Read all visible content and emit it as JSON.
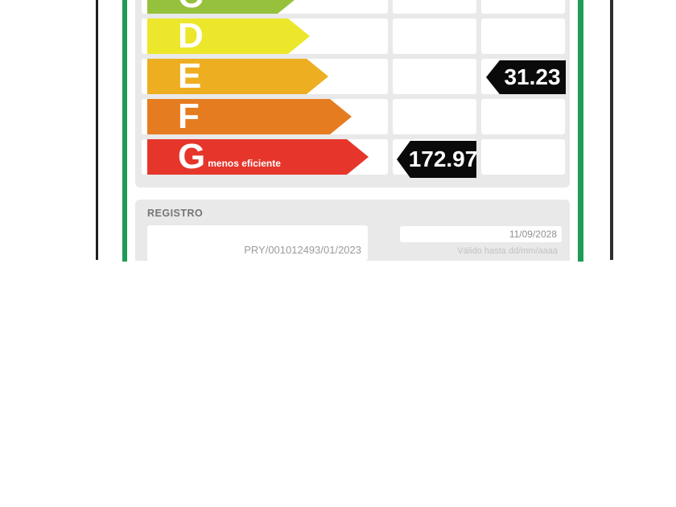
{
  "label": {
    "kind": "energy-efficiency-scale",
    "bands": [
      {
        "letter": "C",
        "color": "#96c13d"
      },
      {
        "letter": "D",
        "color": "#ece72a"
      },
      {
        "letter": "E",
        "color": "#eeae21"
      },
      {
        "letter": "F",
        "color": "#e67c20"
      },
      {
        "letter": "G",
        "color": "#e6362b",
        "suffix": "menos eficiente"
      }
    ],
    "indicators": [
      {
        "value": "31.23",
        "row": "E"
      },
      {
        "value": "172.97",
        "row": "G"
      }
    ],
    "border_color": "#1e9b55",
    "panel_color": "#e9e9e9"
  },
  "registro": {
    "title": "REGISTRO",
    "number": "PRY/001012493/01/2023",
    "valid_date": "11/09/2028",
    "valid_hint": "Válido hasta dd/mm/aaaa"
  }
}
